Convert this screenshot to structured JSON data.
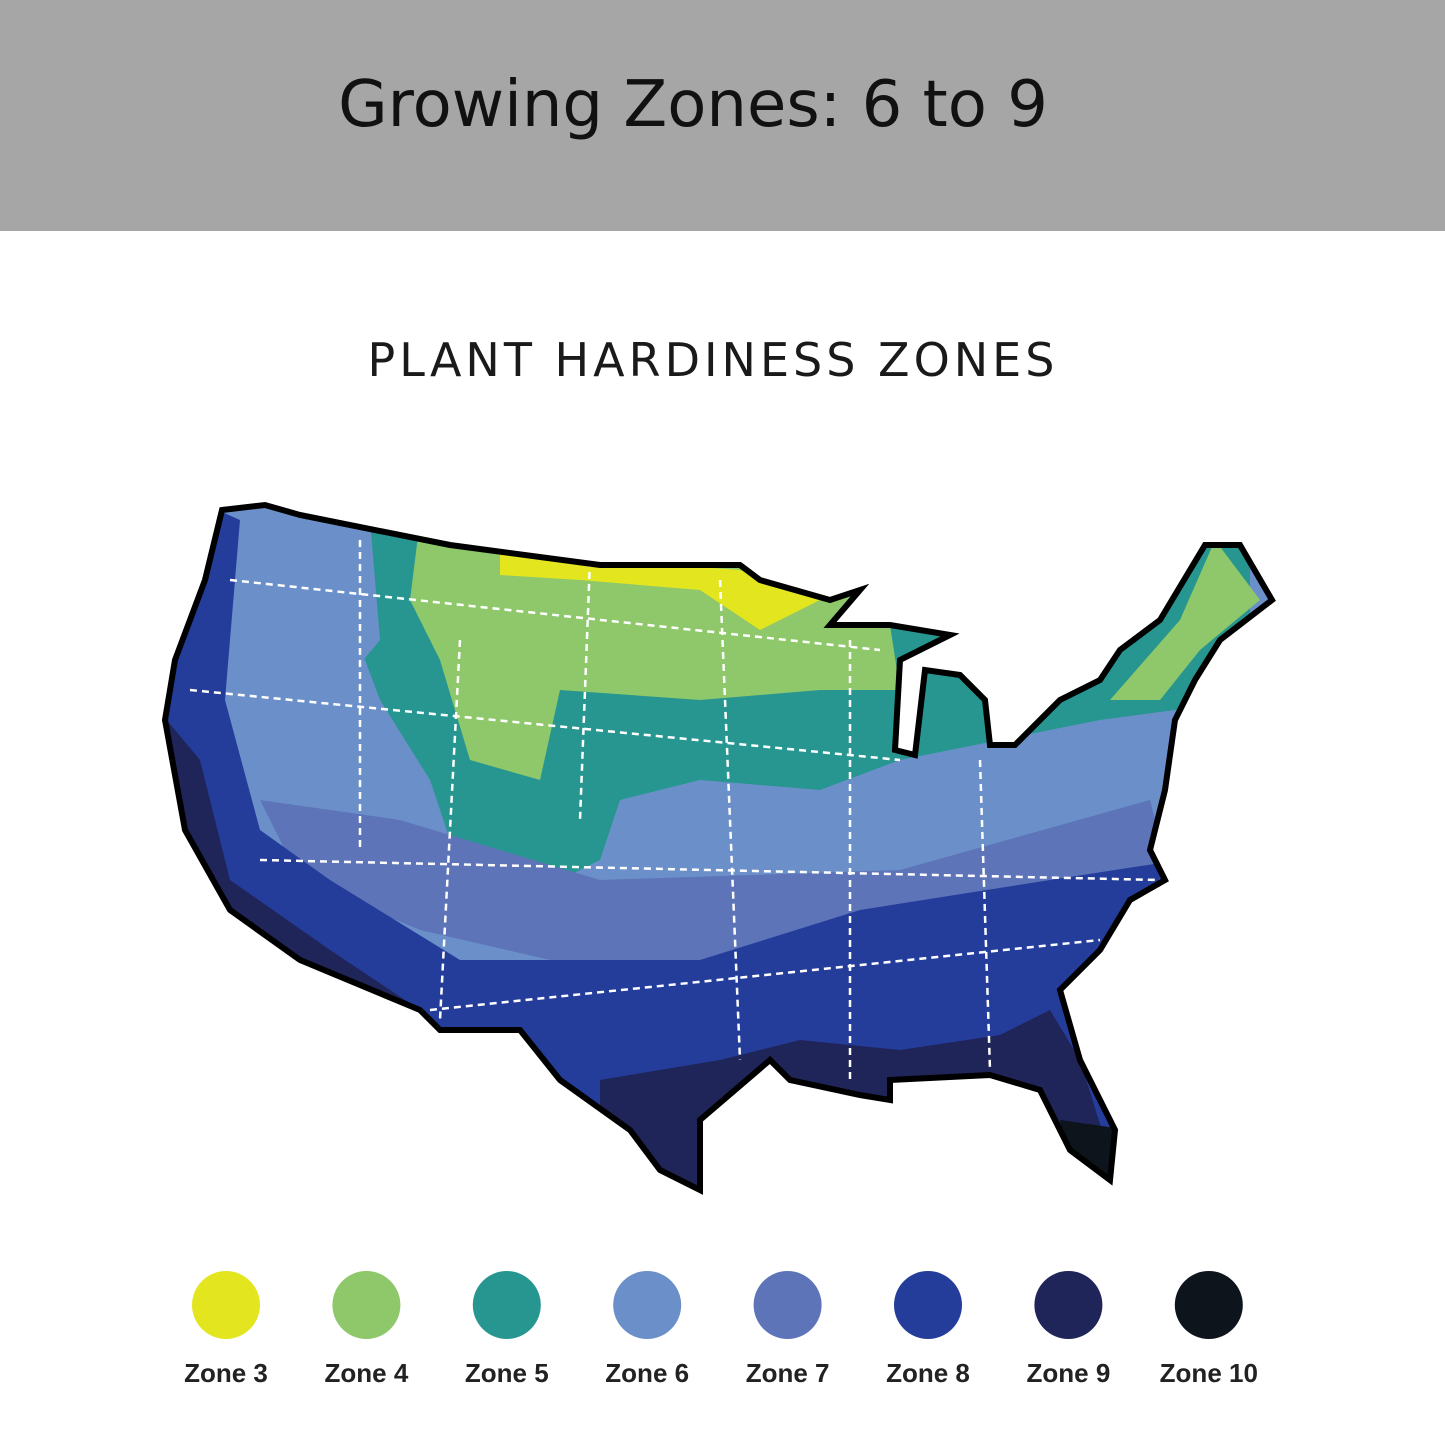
{
  "header": {
    "title": "Growing Zones:  6 to 9"
  },
  "map": {
    "title": "PLANT HARDINESS ZONES",
    "legend": [
      {
        "label": "Zone 3",
        "color": "#e3e61f"
      },
      {
        "label": "Zone 4",
        "color": "#8ec86a"
      },
      {
        "label": "Zone 5",
        "color": "#279691"
      },
      {
        "label": "Zone 6",
        "color": "#6b90c9"
      },
      {
        "label": "Zone 7",
        "color": "#5d74b8"
      },
      {
        "label": "Zone 8",
        "color": "#243d9b"
      },
      {
        "label": "Zone 9",
        "color": "#1f2459"
      },
      {
        "label": "Zone 10",
        "color": "#0d141c"
      }
    ]
  }
}
